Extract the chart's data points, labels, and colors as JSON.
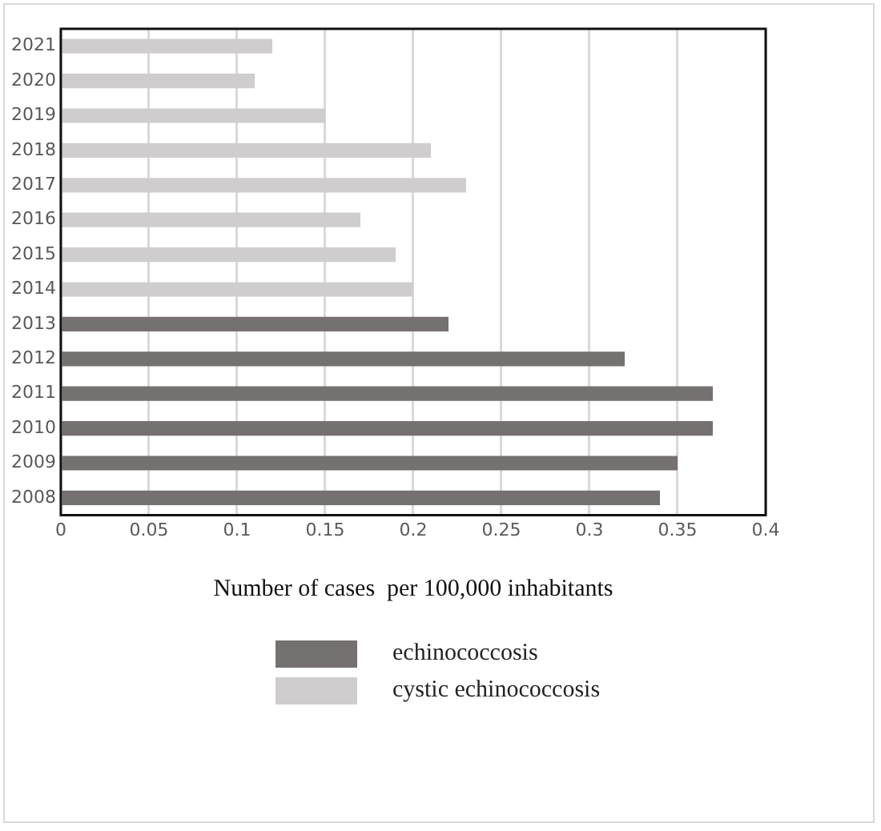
{
  "chart_data": {
    "type": "bar",
    "orientation": "horizontal",
    "xlabel": "Number of cases  per 100,000 inhabitants",
    "categories": [
      "2021",
      "2020",
      "2019",
      "2018",
      "2017",
      "2016",
      "2015",
      "2014",
      "2013",
      "2012",
      "2011",
      "2010",
      "2009",
      "2008"
    ],
    "series": [
      {
        "name": "echinococcosis",
        "color": "#767171",
        "values": [
          null,
          null,
          null,
          null,
          null,
          null,
          null,
          null,
          0.22,
          0.32,
          0.37,
          0.37,
          0.35,
          0.34
        ]
      },
      {
        "name": "cystic echinococcosis",
        "color": "#cfcdcd",
        "values": [
          0.12,
          0.11,
          0.15,
          0.21,
          0.23,
          0.17,
          0.19,
          0.2,
          null,
          null,
          null,
          null,
          null,
          null
        ]
      }
    ],
    "xlim": [
      0,
      0.4
    ],
    "xticks": [
      0,
      0.05,
      0.1,
      0.15,
      0.2,
      0.25,
      0.3,
      0.35,
      0.4
    ],
    "grid": "x",
    "legend": "bottom"
  }
}
